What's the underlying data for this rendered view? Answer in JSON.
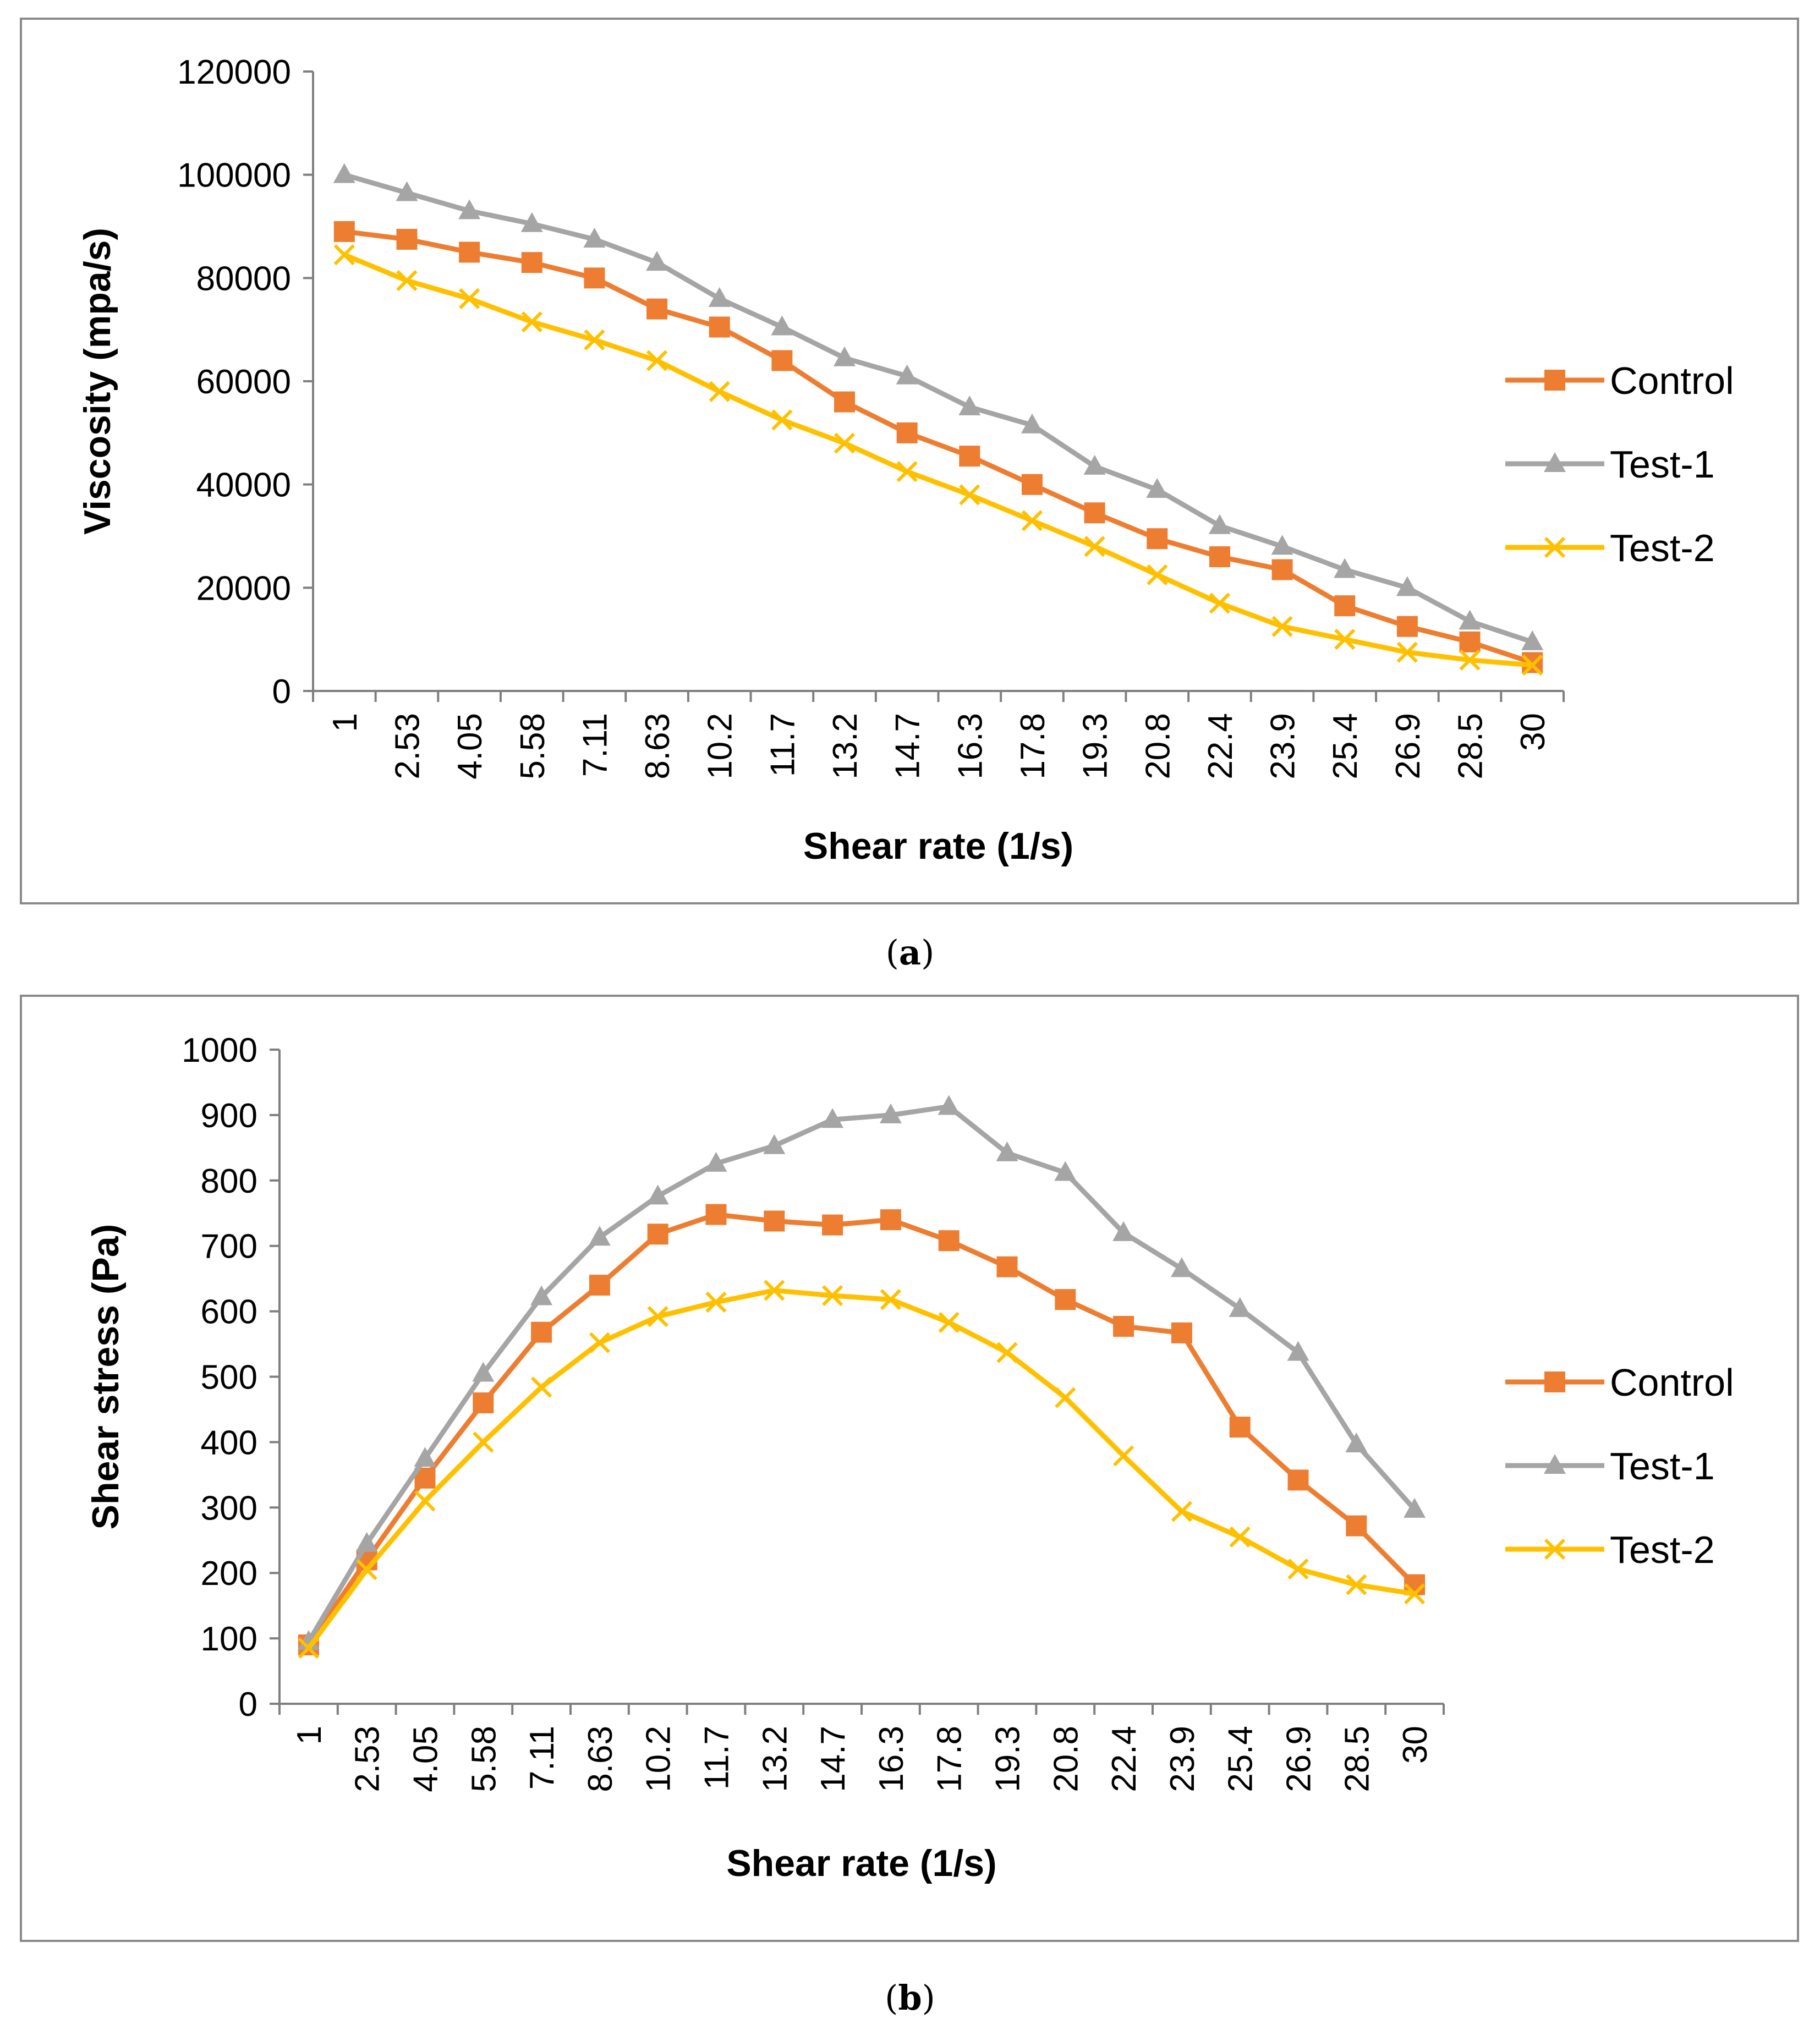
{
  "chart_data": [
    {
      "type": "line",
      "panel": "a",
      "caption": [
        "(",
        "a",
        ")"
      ],
      "xlabel": "Shear rate (1/s)",
      "ylabel": "Viscosity (mpa/s)",
      "ylim": [
        0,
        120000
      ],
      "yticks": [
        "0",
        "20000",
        "40000",
        "60000",
        "80000",
        "100000",
        "120000"
      ],
      "legend": "right",
      "categories": [
        "1",
        "2.53",
        "4.05",
        "5.58",
        "7.11",
        "8.63",
        "10.2",
        "11.7",
        "13.2",
        "14.7",
        "16.3",
        "17.8",
        "19.3",
        "20.8",
        "22.4",
        "23.9",
        "25.4",
        "26.9",
        "28.5",
        "30"
      ],
      "series": [
        {
          "name": "Control",
          "color": "#ED7D31",
          "marker": "square",
          "values": [
            89000,
            87500,
            85000,
            83000,
            80000,
            74000,
            70500,
            64000,
            56000,
            50000,
            45500,
            40000,
            34500,
            29500,
            26000,
            23500,
            16500,
            12500,
            9500,
            5500
          ]
        },
        {
          "name": "Test-1",
          "color": "#A5A5A5",
          "marker": "triangle",
          "values": [
            100000,
            96500,
            93000,
            90500,
            87500,
            83000,
            76000,
            70500,
            64500,
            61000,
            55000,
            51500,
            43500,
            39000,
            32000,
            28000,
            23500,
            20000,
            13500,
            9500
          ]
        },
        {
          "name": "Test-2",
          "color": "#FFC000",
          "marker": "x",
          "values": [
            84500,
            79500,
            76000,
            71500,
            68000,
            64000,
            58000,
            52500,
            48000,
            42500,
            38000,
            33000,
            28000,
            22500,
            17000,
            12500,
            10000,
            7500,
            6000,
            5000
          ]
        }
      ]
    },
    {
      "type": "line",
      "panel": "b",
      "caption": [
        "(",
        "b",
        ")"
      ],
      "xlabel": "Shear rate (1/s)",
      "ylabel": "Shear stress (Pa)",
      "ylim": [
        0,
        1000
      ],
      "yticks": [
        "0",
        "100",
        "200",
        "300",
        "400",
        "500",
        "600",
        "700",
        "800",
        "900",
        "1000"
      ],
      "legend": "right",
      "categories": [
        "1",
        "2.53",
        "4.05",
        "5.58",
        "7.11",
        "8.63",
        "10.2",
        "11.7",
        "13.2",
        "14.7",
        "16.3",
        "17.8",
        "19.3",
        "20.8",
        "22.4",
        "23.9",
        "25.4",
        "26.9",
        "28.5",
        "30"
      ],
      "series": [
        {
          "name": "Control",
          "color": "#ED7D31",
          "marker": "square",
          "values": [
            90,
            220,
            345,
            460,
            568,
            640,
            718,
            748,
            738,
            732,
            740,
            708,
            668,
            618,
            577,
            567,
            423,
            342,
            272,
            182
          ]
        },
        {
          "name": "Test-1",
          "color": "#A5A5A5",
          "marker": "triangle",
          "values": [
            95,
            245,
            375,
            505,
            622,
            713,
            776,
            826,
            853,
            893,
            900,
            913,
            842,
            812,
            720,
            665,
            604,
            537,
            397,
            297
          ]
        },
        {
          "name": "Test-2",
          "color": "#FFC000",
          "marker": "x",
          "values": [
            85,
            205,
            310,
            400,
            484,
            552,
            592,
            614,
            632,
            624,
            618,
            583,
            537,
            468,
            379,
            294,
            255,
            206,
            182,
            168
          ]
        }
      ]
    }
  ]
}
